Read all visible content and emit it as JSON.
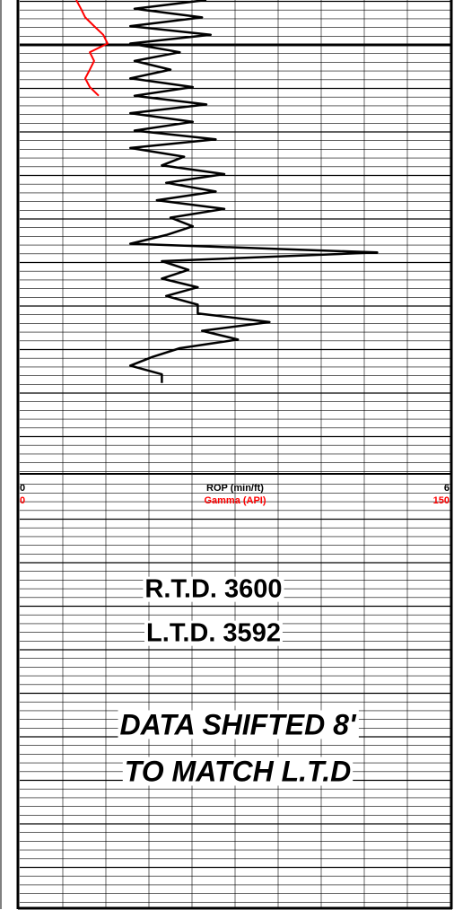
{
  "chart_data": {
    "type": "line",
    "grid": true,
    "series": [
      {
        "name": "ROP (min/ft)",
        "color": "#000000",
        "xlim": [
          0,
          6
        ],
        "xticks": [
          0,
          6
        ],
        "values": [
          2.6,
          1.6,
          2.54,
          1.54,
          2.66,
          1.54,
          2.23,
          1.6,
          2.1,
          1.54,
          2.41,
          1.6,
          2.6,
          1.54,
          2.41,
          1.6,
          2.73,
          1.54,
          2.29,
          1.98,
          2.85,
          2.04,
          2.73,
          1.91,
          2.85,
          2.1,
          2.41,
          2.04,
          1.54,
          4.98,
          1.98,
          2.35,
          1.98,
          2.48,
          2.04,
          2.48,
          2.48,
          3.48,
          2.54,
          3.04,
          2.23,
          1.85,
          1.54,
          1.98,
          1.98
        ]
      },
      {
        "name": "Gamma (API)",
        "color": "#ff0000",
        "xlim": [
          0,
          150
        ],
        "xticks": [
          0,
          150
        ],
        "values": [
          19.7,
          21.3,
          22.8,
          25.9,
          29.1,
          30.6,
          24.4,
          25.9,
          24.4,
          22.8,
          24.4,
          27.5
        ]
      }
    ],
    "annotations": [
      "R.T.D. 3600",
      "L.T.D. 3592",
      "DATA SHIFTED 8'",
      "TO MATCH L.T.D"
    ]
  }
}
